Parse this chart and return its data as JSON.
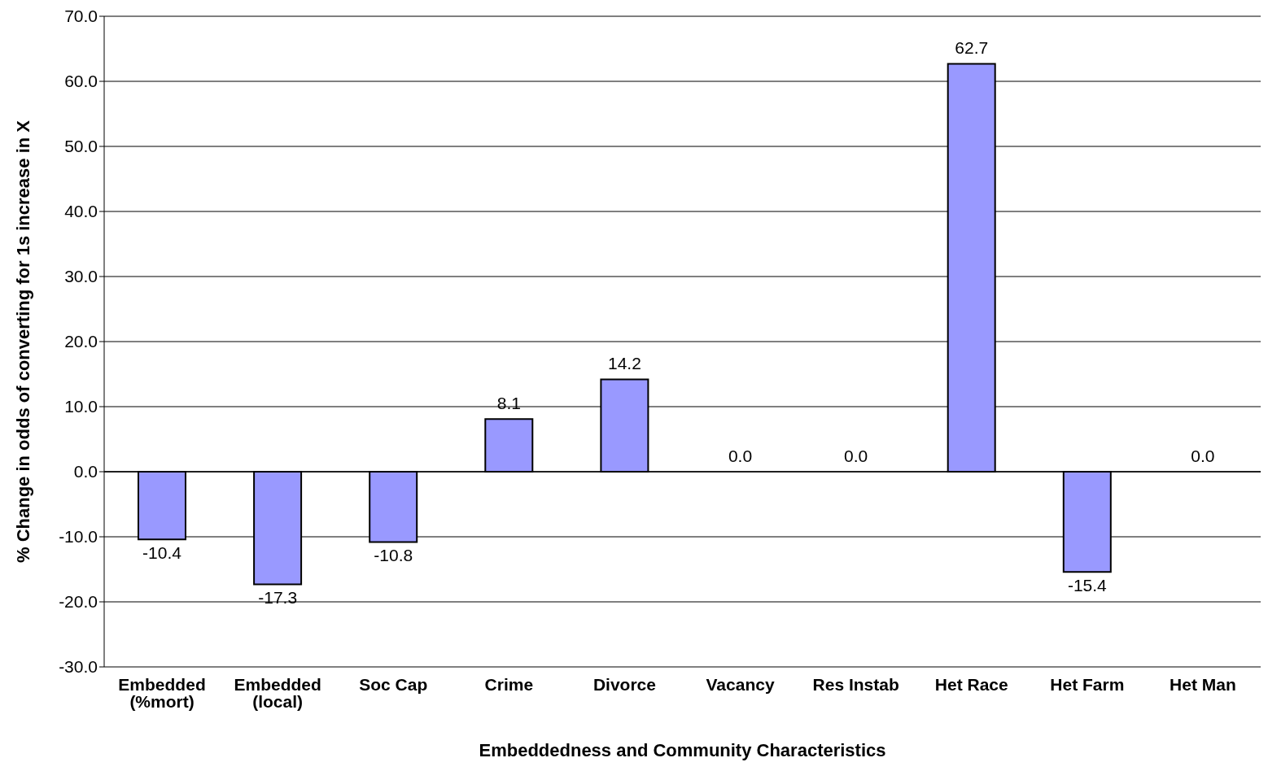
{
  "chart_data": {
    "type": "bar",
    "xlabel": "Embeddedness and Community Characteristics",
    "ylabel": "% Change in odds of converting for 1s increase in X",
    "categories": [
      "Embedded (%mort)",
      "Embedded (local)",
      "Soc Cap",
      "Crime",
      "Divorce",
      "Vacancy",
      "Res Instab",
      "Het Race",
      "Het Farm",
      "Het Man"
    ],
    "values": [
      -10.4,
      -17.3,
      -10.8,
      8.1,
      14.2,
      0.0,
      0.0,
      62.7,
      -15.4,
      0.0
    ],
    "value_labels": [
      "-10.4",
      "-17.3",
      "-10.8",
      "8.1",
      "14.2",
      "0.0",
      "0.0",
      "62.7",
      "-15.4",
      "0.0"
    ],
    "color": "#9999ff",
    "ylim": [
      -30,
      70
    ],
    "yticks": [
      {
        "value": -30,
        "label": "-30.0"
      },
      {
        "value": -20,
        "label": "-20.0"
      },
      {
        "value": -10,
        "label": "-10.0"
      },
      {
        "value": 0,
        "label": "0.0"
      },
      {
        "value": 10,
        "label": "10.0"
      },
      {
        "value": 20,
        "label": "20.0"
      },
      {
        "value": 30,
        "label": "30.0"
      },
      {
        "value": 40,
        "label": "40.0"
      },
      {
        "value": 50,
        "label": "50.0"
      },
      {
        "value": 60,
        "label": "60.0"
      },
      {
        "value": 70,
        "label": "70.0"
      }
    ],
    "grid": "y",
    "legend": false
  }
}
